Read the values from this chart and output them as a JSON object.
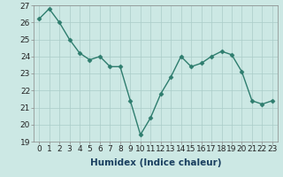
{
  "x": [
    0,
    1,
    2,
    3,
    4,
    5,
    6,
    7,
    8,
    9,
    10,
    11,
    12,
    13,
    14,
    15,
    16,
    17,
    18,
    19,
    20,
    21,
    22,
    23
  ],
  "y": [
    26.2,
    26.8,
    26.0,
    25.0,
    24.2,
    23.8,
    24.0,
    23.4,
    23.4,
    21.4,
    19.4,
    20.4,
    21.8,
    22.8,
    24.0,
    23.4,
    23.6,
    24.0,
    24.3,
    24.1,
    23.1,
    21.4,
    21.2,
    21.4
  ],
  "line_color": "#2e7d6e",
  "marker": "D",
  "marker_size": 2.5,
  "bg_color": "#cce8e4",
  "grid_color": "#aaccc8",
  "xlabel": "Humidex (Indice chaleur)",
  "xlabel_color": "#1a4060",
  "ylim": [
    19,
    27
  ],
  "xlim": [
    -0.5,
    23.5
  ],
  "yticks": [
    19,
    20,
    21,
    22,
    23,
    24,
    25,
    26,
    27
  ],
  "xticks": [
    0,
    1,
    2,
    3,
    4,
    5,
    6,
    7,
    8,
    9,
    10,
    11,
    12,
    13,
    14,
    15,
    16,
    17,
    18,
    19,
    20,
    21,
    22,
    23
  ],
  "xlabel_fontsize": 7.5,
  "tick_fontsize": 6.5,
  "line_width": 1.0
}
